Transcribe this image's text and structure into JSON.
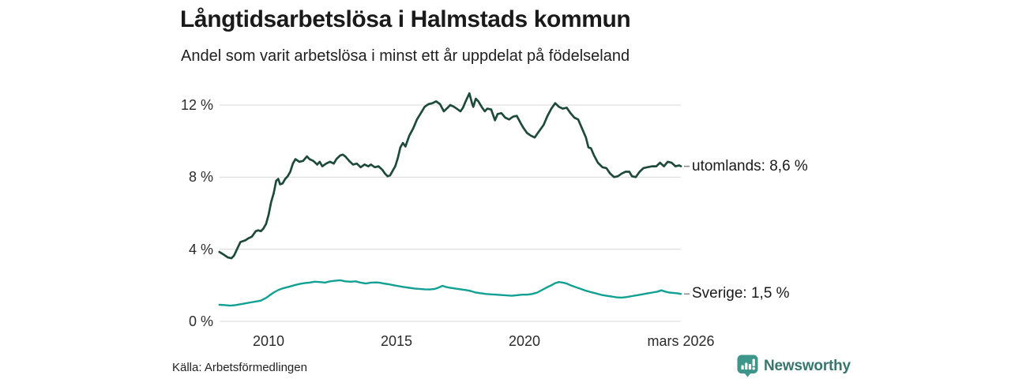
{
  "header": {
    "title": "Långtidsarbetslösa i Halmstads kommun",
    "subtitle": "Andel som varit arbetslösa i minst ett år uppdelat på födelseland"
  },
  "footer": {
    "source": "Källa: Arbetsförmedlingen",
    "brand": "Newsworthy"
  },
  "colors": {
    "utomlands_line": "#1e4a3c",
    "sverige_line": "#11a091",
    "gridline": "#d8d8d8",
    "leader_dash": "#888888",
    "brand_teal": "#3e9589"
  },
  "chart_data": {
    "type": "line",
    "title": "Långtidsarbetslösa i Halmstads kommun",
    "subtitle": "Andel som varit arbetslösa i minst ett år uppdelat på födelseland",
    "unit": "%",
    "grid": "horizontal",
    "legend_position": "end-of-line",
    "x_domain": [
      2008.08,
      2026.17
    ],
    "ylim": [
      0,
      12.8
    ],
    "y_axis": {
      "ticks": [
        {
          "label": "12 %",
          "value": 12
        },
        {
          "label": "8 %",
          "value": 8
        },
        {
          "label": "4 %",
          "value": 4
        },
        {
          "label": "0 %",
          "value": 0
        }
      ]
    },
    "x_axis": {
      "ticks": [
        {
          "label": "2010",
          "year": 2010
        },
        {
          "label": "2015",
          "year": 2015
        },
        {
          "label": "2020",
          "year": 2020
        },
        {
          "label": "mars 2026",
          "year": 2026.17
        }
      ]
    },
    "series": [
      {
        "name": "utomlands",
        "end_label": "utomlands: 8,6 %",
        "end_value": 8.6,
        "color": "#1e4a3c",
        "stroke_width": 2.7,
        "points": [
          [
            2008.08,
            3.85
          ],
          [
            2008.25,
            3.7
          ],
          [
            2008.4,
            3.55
          ],
          [
            2008.55,
            3.5
          ],
          [
            2008.65,
            3.65
          ],
          [
            2008.8,
            4.1
          ],
          [
            2008.9,
            4.4
          ],
          [
            2009.0,
            4.45
          ],
          [
            2009.1,
            4.5
          ],
          [
            2009.2,
            4.6
          ],
          [
            2009.35,
            4.7
          ],
          [
            2009.5,
            5.0
          ],
          [
            2009.6,
            5.05
          ],
          [
            2009.7,
            5.0
          ],
          [
            2009.8,
            5.15
          ],
          [
            2009.9,
            5.4
          ],
          [
            2010.0,
            5.9
          ],
          [
            2010.1,
            6.6
          ],
          [
            2010.2,
            7.1
          ],
          [
            2010.3,
            7.8
          ],
          [
            2010.38,
            7.9
          ],
          [
            2010.45,
            7.6
          ],
          [
            2010.55,
            7.65
          ],
          [
            2010.65,
            7.9
          ],
          [
            2010.75,
            8.05
          ],
          [
            2010.85,
            8.3
          ],
          [
            2010.95,
            8.75
          ],
          [
            2011.05,
            9.0
          ],
          [
            2011.2,
            8.85
          ],
          [
            2011.35,
            8.9
          ],
          [
            2011.5,
            9.15
          ],
          [
            2011.6,
            9.0
          ],
          [
            2011.75,
            8.9
          ],
          [
            2011.9,
            8.7
          ],
          [
            2012.0,
            8.85
          ],
          [
            2012.1,
            8.6
          ],
          [
            2012.25,
            8.75
          ],
          [
            2012.4,
            8.85
          ],
          [
            2012.55,
            8.75
          ],
          [
            2012.65,
            9.0
          ],
          [
            2012.8,
            9.2
          ],
          [
            2012.9,
            9.25
          ],
          [
            2013.0,
            9.15
          ],
          [
            2013.15,
            8.9
          ],
          [
            2013.3,
            8.7
          ],
          [
            2013.45,
            8.75
          ],
          [
            2013.6,
            8.55
          ],
          [
            2013.75,
            8.7
          ],
          [
            2013.9,
            8.6
          ],
          [
            2014.0,
            8.7
          ],
          [
            2014.15,
            8.55
          ],
          [
            2014.3,
            8.6
          ],
          [
            2014.45,
            8.4
          ],
          [
            2014.55,
            8.2
          ],
          [
            2014.65,
            8.05
          ],
          [
            2014.75,
            8.1
          ],
          [
            2014.85,
            8.35
          ],
          [
            2014.95,
            8.6
          ],
          [
            2015.05,
            9.05
          ],
          [
            2015.15,
            9.65
          ],
          [
            2015.25,
            9.9
          ],
          [
            2015.35,
            9.7
          ],
          [
            2015.5,
            10.3
          ],
          [
            2015.65,
            10.7
          ],
          [
            2015.8,
            11.2
          ],
          [
            2015.95,
            11.55
          ],
          [
            2016.1,
            11.9
          ],
          [
            2016.25,
            12.05
          ],
          [
            2016.4,
            12.1
          ],
          [
            2016.55,
            12.2
          ],
          [
            2016.7,
            12.05
          ],
          [
            2016.85,
            11.65
          ],
          [
            2017.0,
            11.85
          ],
          [
            2017.1,
            12.0
          ],
          [
            2017.25,
            11.9
          ],
          [
            2017.4,
            11.75
          ],
          [
            2017.5,
            11.65
          ],
          [
            2017.6,
            11.85
          ],
          [
            2017.7,
            12.2
          ],
          [
            2017.85,
            12.65
          ],
          [
            2017.95,
            12.1
          ],
          [
            2018.0,
            11.9
          ],
          [
            2018.1,
            12.35
          ],
          [
            2018.2,
            12.2
          ],
          [
            2018.35,
            11.85
          ],
          [
            2018.45,
            11.65
          ],
          [
            2018.55,
            11.8
          ],
          [
            2018.7,
            11.75
          ],
          [
            2018.85,
            11.15
          ],
          [
            2018.95,
            11.5
          ],
          [
            2019.1,
            11.55
          ],
          [
            2019.25,
            11.3
          ],
          [
            2019.4,
            11.2
          ],
          [
            2019.55,
            11.35
          ],
          [
            2019.7,
            11.4
          ],
          [
            2019.85,
            11.0
          ],
          [
            2019.95,
            10.75
          ],
          [
            2020.1,
            10.45
          ],
          [
            2020.25,
            10.3
          ],
          [
            2020.4,
            10.2
          ],
          [
            2020.5,
            10.4
          ],
          [
            2020.6,
            10.6
          ],
          [
            2020.75,
            10.9
          ],
          [
            2020.9,
            11.4
          ],
          [
            2021.05,
            11.8
          ],
          [
            2021.2,
            12.1
          ],
          [
            2021.35,
            11.9
          ],
          [
            2021.5,
            11.8
          ],
          [
            2021.65,
            11.85
          ],
          [
            2021.8,
            11.55
          ],
          [
            2021.95,
            11.3
          ],
          [
            2022.1,
            11.2
          ],
          [
            2022.25,
            10.7
          ],
          [
            2022.4,
            10.2
          ],
          [
            2022.5,
            9.65
          ],
          [
            2022.6,
            9.6
          ],
          [
            2022.72,
            9.2
          ],
          [
            2022.87,
            8.8
          ],
          [
            2023.05,
            8.55
          ],
          [
            2023.2,
            8.5
          ],
          [
            2023.35,
            8.2
          ],
          [
            2023.5,
            8.0
          ],
          [
            2023.65,
            8.05
          ],
          [
            2023.8,
            8.2
          ],
          [
            2023.95,
            8.3
          ],
          [
            2024.1,
            8.3
          ],
          [
            2024.2,
            8.05
          ],
          [
            2024.35,
            8.0
          ],
          [
            2024.5,
            8.3
          ],
          [
            2024.65,
            8.5
          ],
          [
            2024.8,
            8.55
          ],
          [
            2025.0,
            8.6
          ],
          [
            2025.15,
            8.6
          ],
          [
            2025.3,
            8.8
          ],
          [
            2025.45,
            8.6
          ],
          [
            2025.6,
            8.85
          ],
          [
            2025.75,
            8.8
          ],
          [
            2025.9,
            8.6
          ],
          [
            2026.05,
            8.65
          ],
          [
            2026.17,
            8.6
          ]
        ]
      },
      {
        "name": "Sverige",
        "end_label": "Sverige: 1,5 %",
        "end_value": 1.5,
        "color": "#11a091",
        "stroke_width": 2.4,
        "points": [
          [
            2008.08,
            0.92
          ],
          [
            2008.3,
            0.9
          ],
          [
            2008.5,
            0.87
          ],
          [
            2008.7,
            0.9
          ],
          [
            2008.9,
            0.95
          ],
          [
            2009.1,
            1.0
          ],
          [
            2009.3,
            1.05
          ],
          [
            2009.5,
            1.1
          ],
          [
            2009.7,
            1.15
          ],
          [
            2009.9,
            1.3
          ],
          [
            2010.05,
            1.45
          ],
          [
            2010.2,
            1.6
          ],
          [
            2010.4,
            1.75
          ],
          [
            2010.6,
            1.85
          ],
          [
            2010.8,
            1.92
          ],
          [
            2011.0,
            2.0
          ],
          [
            2011.2,
            2.07
          ],
          [
            2011.4,
            2.12
          ],
          [
            2011.6,
            2.15
          ],
          [
            2011.8,
            2.2
          ],
          [
            2012.0,
            2.18
          ],
          [
            2012.2,
            2.15
          ],
          [
            2012.4,
            2.22
          ],
          [
            2012.6,
            2.25
          ],
          [
            2012.8,
            2.28
          ],
          [
            2013.0,
            2.22
          ],
          [
            2013.2,
            2.2
          ],
          [
            2013.4,
            2.22
          ],
          [
            2013.6,
            2.15
          ],
          [
            2013.8,
            2.1
          ],
          [
            2014.0,
            2.15
          ],
          [
            2014.2,
            2.16
          ],
          [
            2014.35,
            2.14
          ],
          [
            2014.5,
            2.1
          ],
          [
            2014.7,
            2.06
          ],
          [
            2014.9,
            2.0
          ],
          [
            2015.1,
            1.95
          ],
          [
            2015.3,
            1.9
          ],
          [
            2015.5,
            1.86
          ],
          [
            2015.7,
            1.82
          ],
          [
            2015.9,
            1.8
          ],
          [
            2016.1,
            1.78
          ],
          [
            2016.3,
            1.77
          ],
          [
            2016.5,
            1.8
          ],
          [
            2016.65,
            1.88
          ],
          [
            2016.8,
            1.97
          ],
          [
            2016.95,
            1.9
          ],
          [
            2017.1,
            1.86
          ],
          [
            2017.3,
            1.82
          ],
          [
            2017.5,
            1.78
          ],
          [
            2017.7,
            1.74
          ],
          [
            2017.9,
            1.68
          ],
          [
            2018.1,
            1.6
          ],
          [
            2018.3,
            1.56
          ],
          [
            2018.5,
            1.52
          ],
          [
            2018.7,
            1.5
          ],
          [
            2018.9,
            1.48
          ],
          [
            2019.1,
            1.46
          ],
          [
            2019.3,
            1.44
          ],
          [
            2019.5,
            1.42
          ],
          [
            2019.7,
            1.45
          ],
          [
            2019.9,
            1.48
          ],
          [
            2020.1,
            1.48
          ],
          [
            2020.3,
            1.52
          ],
          [
            2020.5,
            1.6
          ],
          [
            2020.7,
            1.75
          ],
          [
            2020.9,
            1.9
          ],
          [
            2021.05,
            2.0
          ],
          [
            2021.2,
            2.12
          ],
          [
            2021.35,
            2.18
          ],
          [
            2021.5,
            2.15
          ],
          [
            2021.65,
            2.1
          ],
          [
            2021.8,
            2.0
          ],
          [
            2022.0,
            1.9
          ],
          [
            2022.2,
            1.8
          ],
          [
            2022.4,
            1.7
          ],
          [
            2022.6,
            1.62
          ],
          [
            2022.8,
            1.55
          ],
          [
            2023.0,
            1.47
          ],
          [
            2023.2,
            1.42
          ],
          [
            2023.4,
            1.38
          ],
          [
            2023.6,
            1.33
          ],
          [
            2023.8,
            1.32
          ],
          [
            2024.0,
            1.35
          ],
          [
            2024.2,
            1.4
          ],
          [
            2024.4,
            1.45
          ],
          [
            2024.6,
            1.5
          ],
          [
            2024.8,
            1.55
          ],
          [
            2025.0,
            1.6
          ],
          [
            2025.2,
            1.65
          ],
          [
            2025.35,
            1.72
          ],
          [
            2025.5,
            1.65
          ],
          [
            2025.65,
            1.6
          ],
          [
            2025.8,
            1.58
          ],
          [
            2026.0,
            1.55
          ],
          [
            2026.17,
            1.52
          ]
        ]
      }
    ]
  }
}
